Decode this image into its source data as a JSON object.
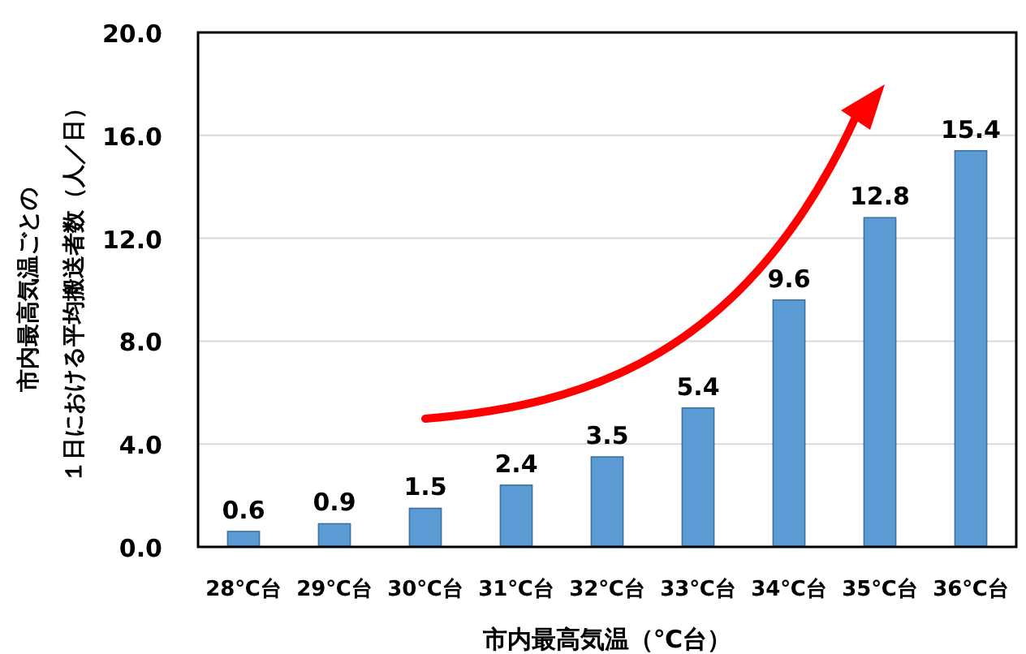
{
  "chart_data": {
    "type": "bar",
    "xlabel": "市内最高気温（℃台）",
    "ylabel": [
      "市内最高気温ごとの",
      "１日における平均搬送者数（人／日）"
    ],
    "categories": [
      "28℃台",
      "29℃台",
      "30℃台",
      "31℃台",
      "32℃台",
      "33℃台",
      "34℃台",
      "35℃台",
      "36℃台"
    ],
    "values": [
      0.6,
      0.9,
      1.5,
      2.4,
      3.5,
      5.4,
      9.6,
      12.8,
      15.4
    ],
    "value_labels": [
      "0.6",
      "0.9",
      "1.5",
      "2.4",
      "3.5",
      "5.4",
      "9.6",
      "12.8",
      "15.4"
    ],
    "color": "#5b9bd5",
    "ylim": [
      0,
      20
    ],
    "yticks": [
      {
        "value": 0,
        "label": "0.0"
      },
      {
        "value": 4,
        "label": "4.0"
      },
      {
        "value": 8,
        "label": "8.0"
      },
      {
        "value": 12,
        "label": "12.0"
      },
      {
        "value": 16,
        "label": "16.0"
      },
      {
        "value": 20,
        "label": "20.0"
      }
    ],
    "grid": "y"
  }
}
